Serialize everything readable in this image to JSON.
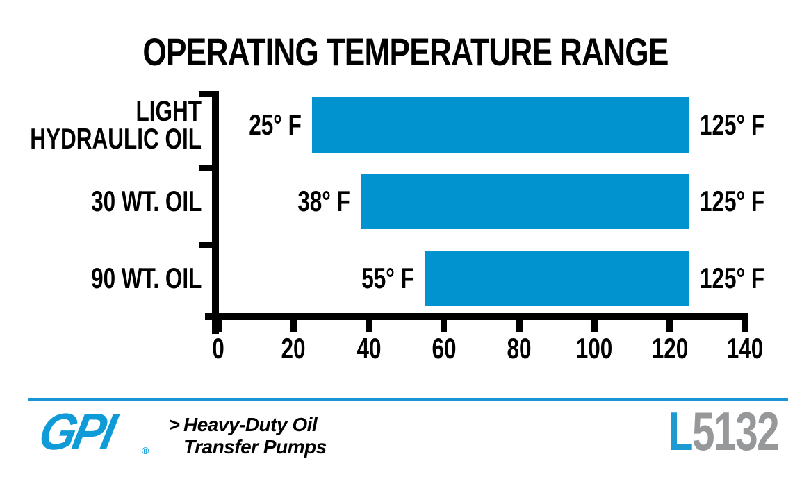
{
  "chart_data": {
    "type": "bar",
    "orientation": "horizontal",
    "title": "OPERATING TEMPERATURE RANGE",
    "x_unit": "°F",
    "xlim": [
      0,
      140
    ],
    "x_ticks": [
      0,
      20,
      40,
      60,
      80,
      100,
      120,
      140
    ],
    "grid": false,
    "bar_color": "#0093d0",
    "rows": [
      {
        "category_lines": [
          "LIGHT",
          "HYDRAULIC OIL"
        ],
        "min": 25,
        "max": 125,
        "min_label": "25° F",
        "max_label": "125° F"
      },
      {
        "category_lines": [
          "30 WT. OIL"
        ],
        "min": 38,
        "max": 125,
        "min_label": "38° F",
        "max_label": "125° F"
      },
      {
        "category_lines": [
          "90 WT. OIL"
        ],
        "min": 55,
        "max": 125,
        "min_label": "55° F",
        "max_label": "125° F"
      }
    ]
  },
  "footer": {
    "logo_text": "GPI",
    "registered_mark": "®",
    "tagline_arrow": ">",
    "tagline_line1": "Heavy-Duty Oil",
    "tagline_line2": "Transfer Pumps",
    "part_prefix": "L",
    "part_number": "5132",
    "colors": {
      "rule_blue": "#1796d3",
      "logo_blue": "#0f9bd7",
      "part_prefix_blue": "#1e9ad2",
      "part_number_gray": "#97989a"
    }
  }
}
